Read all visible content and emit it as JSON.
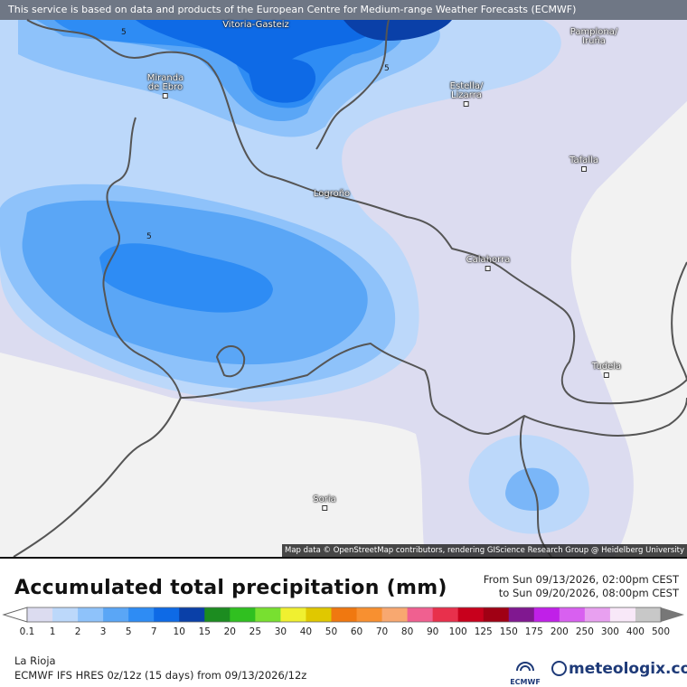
{
  "disclaimer": "This service is based on data and products of the European Centre for Medium-range Weather Forecasts (ECMWF)",
  "attribution": "Map data © OpenStreetMap contributors, rendering GIScience Research Group @ Heidelberg University",
  "title": "Accumulated total precipitation (mm)",
  "period": {
    "from": "From Sun 09/13/2026, 02:00pm CEST",
    "to": "to Sun 09/20/2026, 08:00pm CEST"
  },
  "region": "La Rioja",
  "model": "ECMWF IFS HRES 0z/12z (15 days) from 09/13/2026/12z",
  "brand": "meteologix.com",
  "brand_logo_text": "ECMWF",
  "cities": [
    {
      "name": "Vitoria-Gasteiz"
    },
    {
      "name": "Pamplona/\nIruña"
    },
    {
      "name": "Miranda\nde Ebro"
    },
    {
      "name": "Estella/\nLizarra"
    },
    {
      "name": "Tafalla"
    },
    {
      "name": "Logroño"
    },
    {
      "name": "Calahorra"
    },
    {
      "name": "Tudela"
    },
    {
      "name": "Soria"
    }
  ],
  "isolines": [
    "5",
    "5",
    "5"
  ],
  "legend": {
    "labels": [
      "0.1",
      "1",
      "2",
      "3",
      "5",
      "7",
      "10",
      "15",
      "20",
      "25",
      "30",
      "40",
      "50",
      "60",
      "70",
      "80",
      "90",
      "100",
      "125",
      "150",
      "175",
      "200",
      "250",
      "300",
      "400",
      "500"
    ],
    "colors": [
      "#dcdcf0",
      "#bcd8fa",
      "#8ec2fa",
      "#5aa6f6",
      "#2e8cf4",
      "#0e6ae6",
      "#0a40a8",
      "#1c8c20",
      "#30c020",
      "#78e030",
      "#f0f030",
      "#e0c800",
      "#f07810",
      "#f89030",
      "#f8a870",
      "#f06090",
      "#e8304c",
      "#c8001c",
      "#a00014",
      "#801890",
      "#c020e8",
      "#d860f0",
      "#e8a0f0",
      "#f8e8f8",
      "#c8c8c8"
    ]
  }
}
